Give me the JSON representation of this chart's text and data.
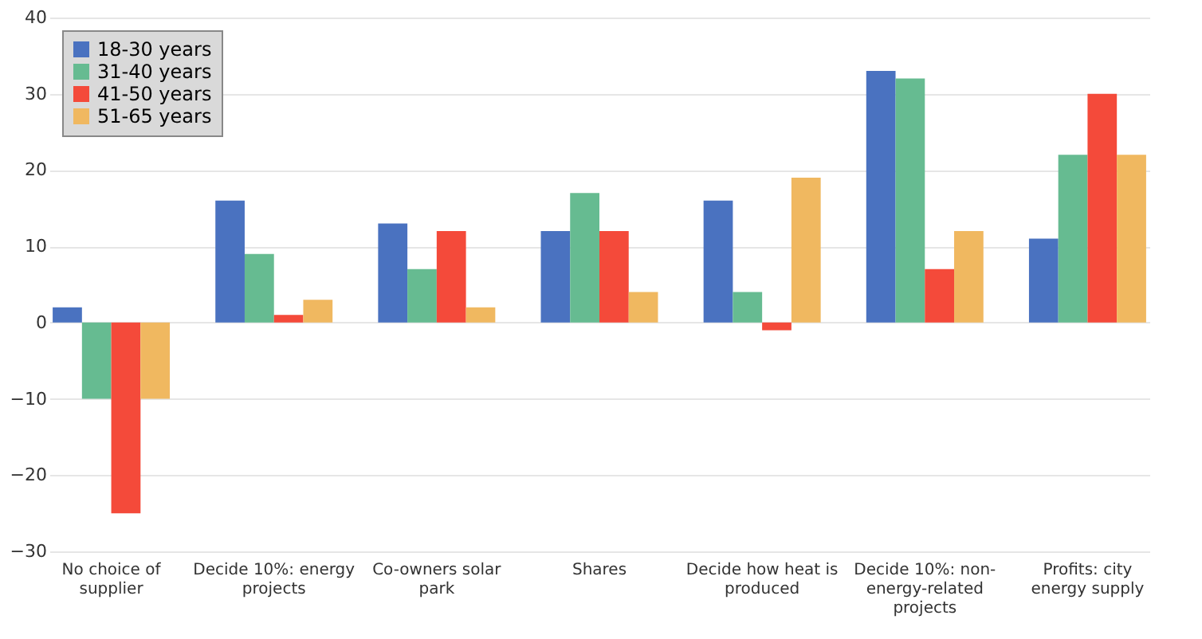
{
  "chart_data": {
    "type": "bar",
    "categories": [
      "No choice of supplier",
      "Decide 10%: energy projects",
      "Co-owners solar park",
      "Shares",
      "Decide how heat is produced",
      "Decide 10%: non-energy-related projects",
      "Profits: city energy supply"
    ],
    "series": [
      {
        "name": "18-30 years",
        "color": "#4a72c0",
        "values": [
          2,
          16,
          13,
          12,
          16,
          33,
          11
        ]
      },
      {
        "name": "31-40 years",
        "color": "#66bb91",
        "values": [
          -10,
          9,
          7,
          17,
          4,
          32,
          22
        ]
      },
      {
        "name": "41-50 years",
        "color": "#f44a3a",
        "values": [
          -25,
          1,
          12,
          12,
          -1,
          7,
          30
        ]
      },
      {
        "name": "51-65 years",
        "color": "#f0b860",
        "values": [
          -10,
          3,
          2,
          4,
          19,
          12,
          22
        ]
      }
    ],
    "ylim": [
      -30,
      40
    ],
    "yticks": [
      -30,
      -20,
      -10,
      0,
      10,
      20,
      30,
      40
    ],
    "grid": "y",
    "legend": "top left"
  }
}
